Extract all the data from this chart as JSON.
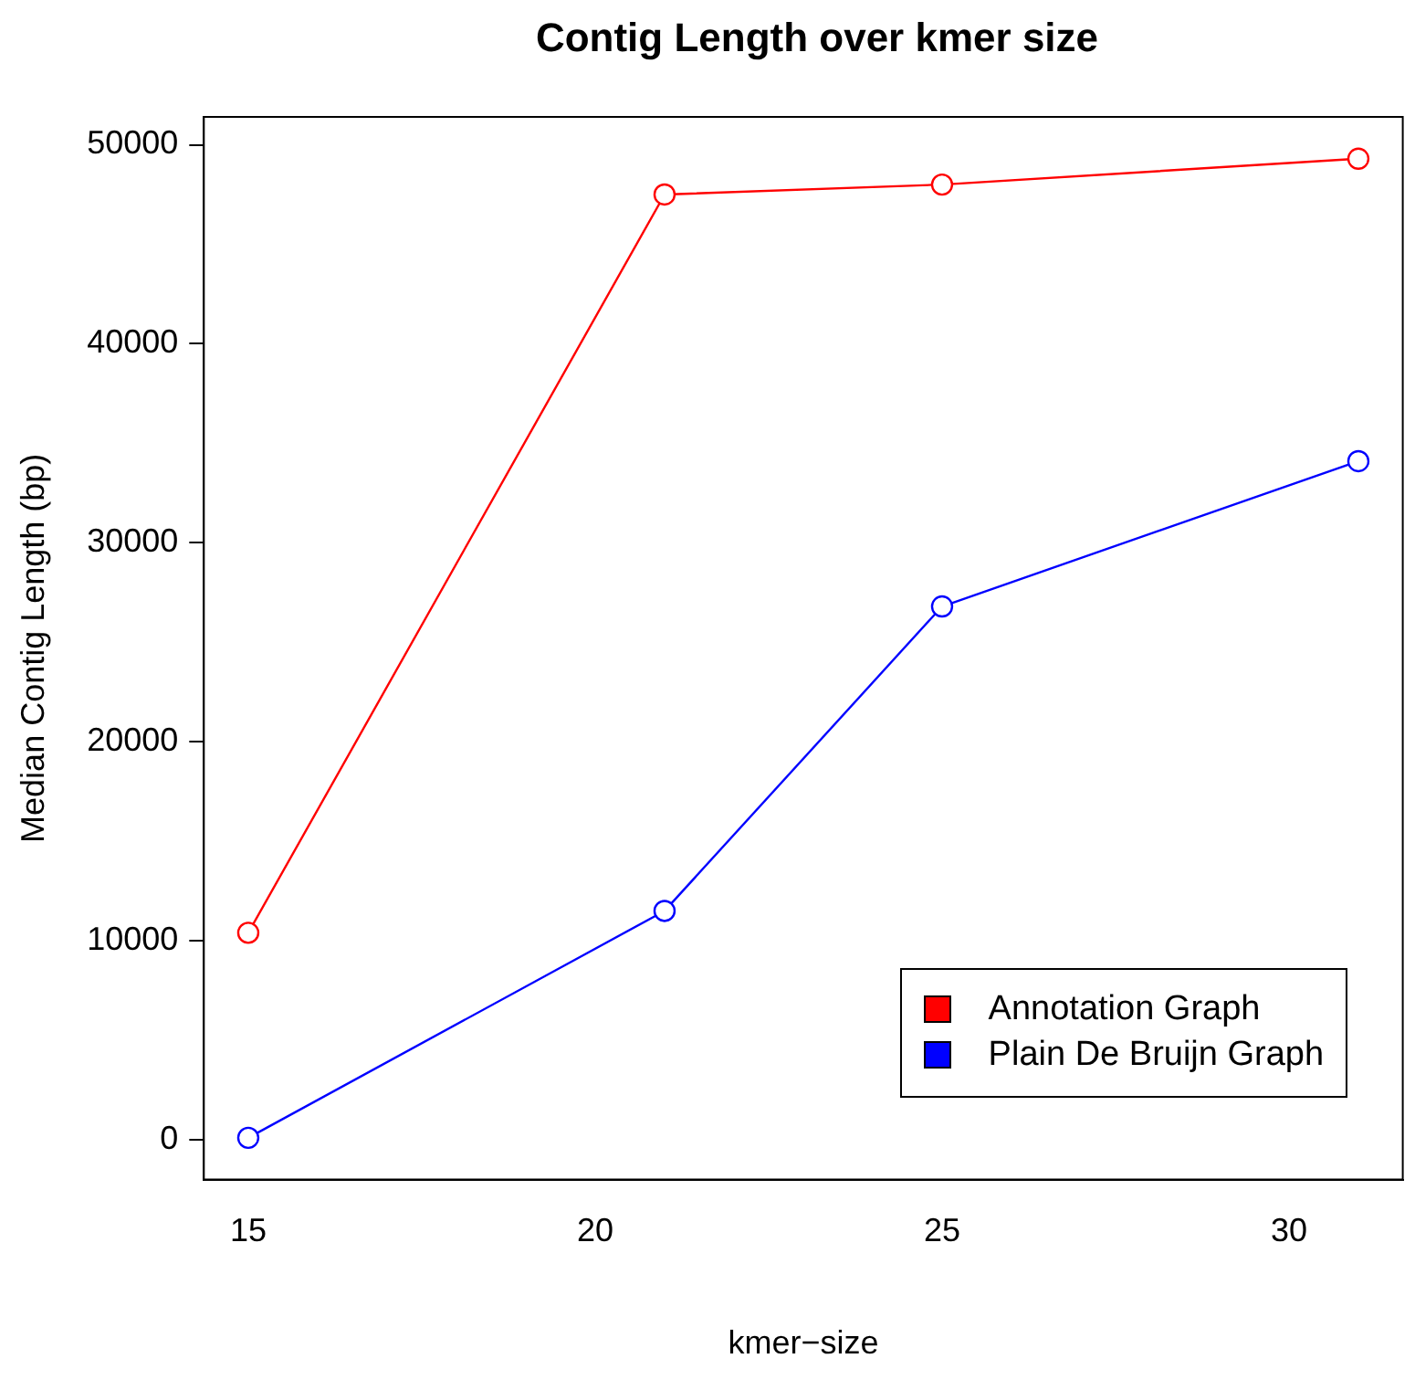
{
  "chart_data": {
    "type": "line",
    "title": "Contig Length over kmer size",
    "xlabel": "kmer−size",
    "ylabel": "Median Contig Length (bp)",
    "x": [
      15,
      21,
      25,
      31
    ],
    "series": [
      {
        "name": "Annotation Graph",
        "color": "#ff0000",
        "values": [
          10400,
          47500,
          48000,
          49300
        ]
      },
      {
        "name": "Plain De Bruijn Graph",
        "color": "#0000ff",
        "values": [
          100,
          11500,
          26800,
          34100
        ]
      }
    ],
    "xlim": [
      14.36,
      31.64
    ],
    "xticks": [
      15,
      20,
      25,
      30
    ],
    "ylim": [
      -2000,
      51400
    ],
    "yticks": [
      0,
      10000,
      20000,
      30000,
      40000,
      50000
    ],
    "grid": false,
    "legend": "bottom right",
    "marker": "circle",
    "line_style": "solid"
  }
}
